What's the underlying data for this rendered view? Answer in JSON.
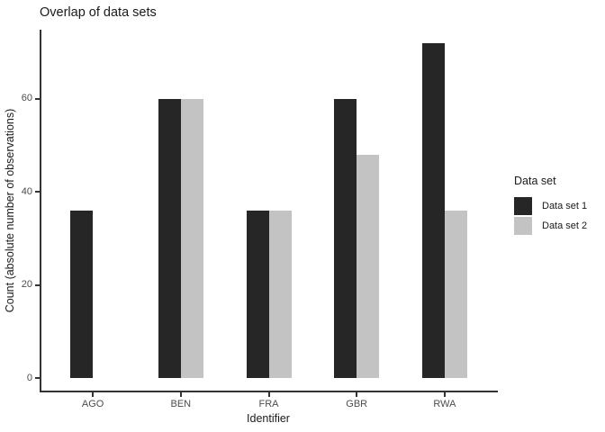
{
  "chart_data": {
    "type": "bar",
    "title": "Overlap of data sets",
    "xlabel": "Identifier",
    "ylabel": "Count (absolute number of observations)",
    "categories": [
      "AGO",
      "BEN",
      "FRA",
      "GBR",
      "RWA"
    ],
    "series": [
      {
        "name": "Data set 1",
        "color": "#262626",
        "values": [
          36,
          60,
          36,
          60,
          72
        ]
      },
      {
        "name": "Data set 2",
        "color": "#c3c3c3",
        "values": [
          null,
          60,
          36,
          48,
          36
        ]
      }
    ],
    "legend": {
      "title": "Data set",
      "position": "right"
    },
    "yticks": [
      0,
      20,
      40,
      60
    ],
    "ylim": [
      0,
      75
    ],
    "grid": false,
    "axis_color": "#333333",
    "tick_label_color": "#4d4d4d"
  }
}
